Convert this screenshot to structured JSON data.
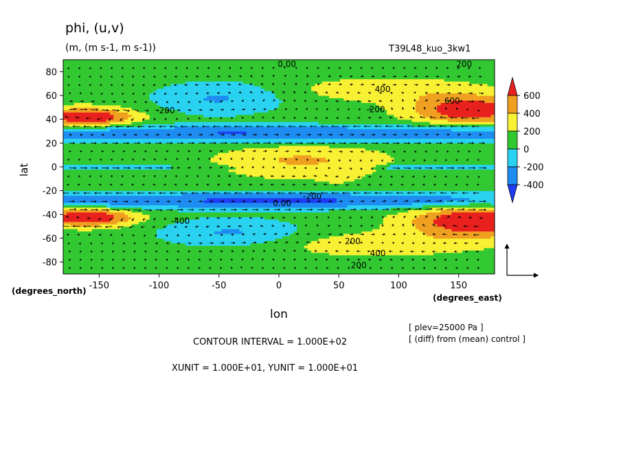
{
  "chart_data": {
    "type": "contour-vector",
    "title": "phi, (u,v)",
    "units": "(m, (m s-1, m s-1))",
    "run_label": "T39L48_kuo_3kw1",
    "xlabel": "lon",
    "ylabel": "lat",
    "x_unit_label": "(degrees_east)",
    "y_unit_label": "(degrees_north)",
    "xlim": [
      -180,
      180
    ],
    "ylim": [
      -90,
      90
    ],
    "x_ticks": [
      "-150",
      "-100",
      "-50",
      "0",
      "50",
      "100",
      "150"
    ],
    "x_tick_values": [
      -150,
      -100,
      -50,
      0,
      50,
      100,
      150
    ],
    "y_ticks": [
      "80",
      "60",
      "40",
      "20",
      "0",
      "-20",
      "-40",
      "-60",
      "-80"
    ],
    "y_tick_values": [
      80,
      60,
      40,
      20,
      0,
      -20,
      -40,
      -60,
      -80
    ],
    "colorbar": {
      "labels": [
        "600",
        "400",
        "200",
        "0",
        "-200",
        "-400"
      ],
      "label_values": [
        600,
        400,
        200,
        0,
        -200,
        -400
      ],
      "colors": [
        "#e8211e",
        "#f0a021",
        "#f8f032",
        "#32c832",
        "#28d2f0",
        "#1e8cf0",
        "#1e3cf5"
      ]
    },
    "contour_labels": [
      "0.00",
      "200",
      "400",
      "600",
      "200",
      "-200",
      "-400",
      "200",
      "400",
      "200",
      "0.00",
      "-200"
    ],
    "notes": {
      "level": "[ plev=25000 Pa ]",
      "diff": "[ (diff) from (mean) control ]",
      "contour_interval": "CONTOUR INTERVAL = 1.000E+02",
      "vector_units": "XUNIT = 1.000E+01, YUNIT = 1.000E+01"
    }
  }
}
